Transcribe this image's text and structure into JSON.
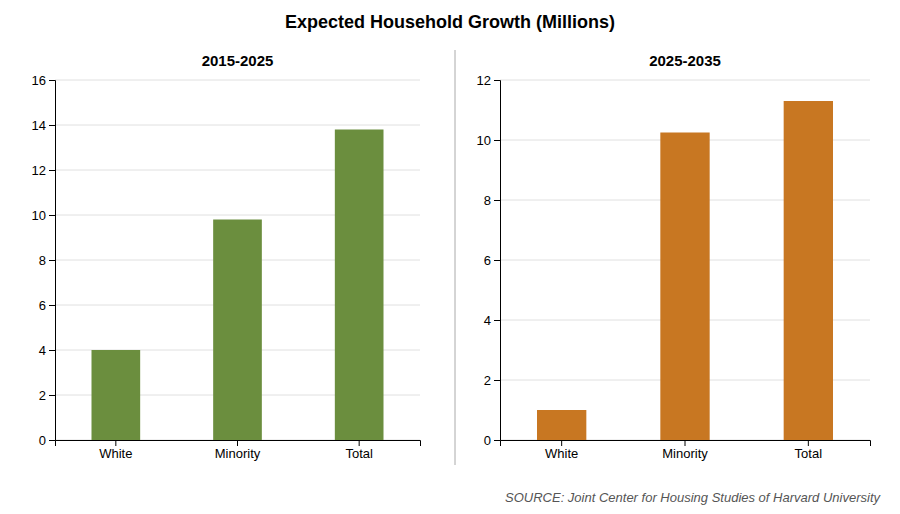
{
  "title": "Expected Household Growth (Millions)",
  "annotations": [
    "SOURCE: Joint Center for Housing Studies of Harvard University"
  ],
  "chart_data": [
    {
      "type": "bar",
      "subtitle": "2015-2025",
      "categories": [
        "White",
        "Minority",
        "Total"
      ],
      "values": [
        4.0,
        9.8,
        13.8
      ],
      "color": "#6b8e3e",
      "ylim": [
        0,
        16
      ],
      "yticks": [
        0,
        2,
        4,
        6,
        8,
        10,
        12,
        14,
        16
      ],
      "grid": true
    },
    {
      "type": "bar",
      "subtitle": "2025-2035",
      "categories": [
        "White",
        "Minority",
        "Total"
      ],
      "values": [
        1.0,
        10.25,
        11.3
      ],
      "color": "#c87722",
      "ylim": [
        0,
        12
      ],
      "yticks": [
        0,
        2,
        4,
        6,
        8,
        10,
        12
      ],
      "grid": true
    }
  ]
}
